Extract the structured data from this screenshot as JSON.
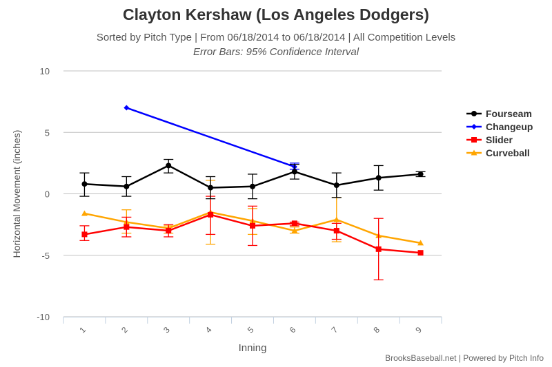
{
  "header": {
    "title": "Clayton Kershaw (Los Angeles Dodgers)",
    "subtitle": "Sorted by Pitch Type | From 06/18/2014 to 06/18/2014 | All Competition Levels",
    "note": "Error Bars: 95% Confidence Interval"
  },
  "credits": "BrooksBaseball.net | Powered by Pitch Info",
  "chart_data": {
    "type": "line",
    "title": "Clayton Kershaw (Los Angeles Dodgers)",
    "xlabel": "Inning",
    "ylabel": "Horizontal Movement (inches)",
    "categories": [
      "1",
      "2",
      "3",
      "4",
      "5",
      "6",
      "7",
      "8",
      "9"
    ],
    "ylim": [
      -10,
      10
    ],
    "yticks": [
      -10,
      -5,
      0,
      5,
      10
    ],
    "grid": true,
    "legend": "right",
    "series": [
      {
        "name": "Fourseam",
        "color": "#000000",
        "marker": "circle",
        "values": [
          0.8,
          0.6,
          2.3,
          0.5,
          0.6,
          1.8,
          0.7,
          1.3,
          1.6
        ],
        "err_low": [
          -0.2,
          -0.2,
          1.7,
          -0.4,
          -0.4,
          1.2,
          -0.3,
          0.3,
          1.4
        ],
        "err_high": [
          1.7,
          1.4,
          2.8,
          1.4,
          1.6,
          2.4,
          1.7,
          2.3,
          1.8
        ]
      },
      {
        "name": "Changeup",
        "color": "#0000ff",
        "marker": "diamond",
        "values": [
          null,
          7.0,
          null,
          null,
          null,
          2.2,
          null,
          null,
          null
        ],
        "err_low": [
          null,
          7.0,
          null,
          null,
          null,
          2.0,
          null,
          null,
          null
        ],
        "err_high": [
          null,
          7.0,
          null,
          null,
          null,
          2.5,
          null,
          null,
          null
        ]
      },
      {
        "name": "Slider",
        "color": "#ff0000",
        "marker": "square",
        "values": [
          -3.3,
          -2.7,
          -3.0,
          -1.7,
          -2.6,
          -2.4,
          -3.0,
          -4.5,
          -4.8
        ],
        "err_low": [
          -3.8,
          -3.5,
          -3.5,
          -3.3,
          -4.2,
          -2.6,
          -3.7,
          -7.0,
          -4.8
        ],
        "err_high": [
          -2.6,
          -1.9,
          -2.5,
          -0.2,
          -1.0,
          -2.3,
          -2.4,
          -2.0,
          -4.8
        ]
      },
      {
        "name": "Curveball",
        "color": "#ffa500",
        "marker": "triangle",
        "values": [
          -1.6,
          -2.3,
          -2.8,
          -1.5,
          -2.2,
          -3.0,
          -2.1,
          -3.4,
          -4.0
        ],
        "err_low": [
          -1.6,
          -3.2,
          -3.2,
          -4.1,
          -3.3,
          -3.2,
          -3.9,
          -3.4,
          -4.0
        ],
        "err_high": [
          -1.6,
          -1.3,
          -2.6,
          1.1,
          -1.2,
          -2.7,
          -0.3,
          -3.4,
          -4.0
        ]
      }
    ]
  }
}
